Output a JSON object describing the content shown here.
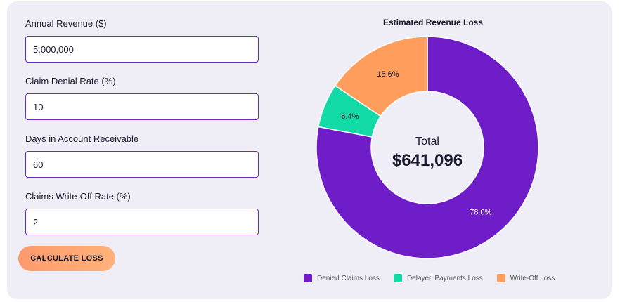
{
  "form": {
    "revenue_label": "Annual Revenue ($)",
    "revenue_value": "5,000,000",
    "denial_label": "Claim Denial Rate (%)",
    "denial_value": "10",
    "days_label": "Days in Account Receivable",
    "days_value": "60",
    "writeoff_label": "Claims Write-Off Rate (%)",
    "writeoff_value": "2",
    "button_label": "CALCULATE LOSS"
  },
  "chart_data": {
    "type": "pie",
    "title": "Estimated Revenue Loss",
    "center_label": "Total",
    "center_value": "$641,096",
    "categories": [
      "Denied Claims Loss",
      "Delayed Payments Loss",
      "Write-Off Loss"
    ],
    "values": [
      78.0,
      6.4,
      15.6
    ],
    "labels": [
      "78.0%",
      "6.4%",
      "15.6%"
    ],
    "colors": [
      "#6f1dc8",
      "#13dba8",
      "#ff9e5c"
    ],
    "legend_position": "bottom"
  }
}
